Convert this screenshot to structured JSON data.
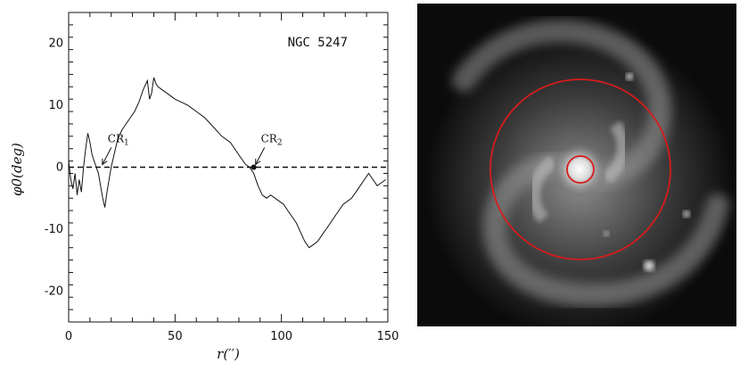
{
  "chart_data": {
    "type": "line",
    "title": "",
    "annotation_title": "NGC 5247",
    "xlabel": "r(′′)",
    "ylabel": "φ0(deg)",
    "xlim": [
      0,
      150
    ],
    "ylim": [
      -25,
      25
    ],
    "xticks": [
      0,
      50,
      100,
      150
    ],
    "yticks": [
      -20,
      -10,
      0,
      10,
      20
    ],
    "zero_line": true,
    "series": [
      {
        "x": [
          0,
          1,
          2,
          3,
          4,
          5,
          6,
          7,
          8,
          9,
          10,
          11,
          12,
          13,
          14,
          15,
          16,
          17,
          18,
          19,
          20,
          21,
          22,
          23,
          25,
          27,
          29,
          31,
          33,
          35,
          37,
          38,
          39,
          40,
          41,
          42,
          44,
          46,
          48,
          50,
          53,
          56,
          60,
          64,
          68,
          72,
          76,
          80,
          83,
          85,
          87,
          89,
          91,
          93,
          95,
          97,
          99,
          101,
          103,
          105,
          107,
          109,
          111,
          113,
          115,
          117,
          119,
          121,
          123,
          125,
          127,
          129,
          131,
          133,
          135,
          137,
          139,
          141,
          143,
          145,
          147,
          149
        ],
        "y": [
          1,
          -2,
          -3.5,
          -1,
          -4.5,
          -2,
          -4,
          0,
          3,
          5.5,
          4,
          2,
          1,
          0,
          -1,
          -3,
          -5,
          -6.5,
          -4,
          -2,
          0,
          1.5,
          3,
          4.5,
          6,
          7,
          8,
          9,
          10.5,
          12.5,
          14,
          11,
          12,
          14.5,
          13.5,
          13,
          12.5,
          12,
          11.5,
          11,
          10.5,
          10,
          9,
          8,
          6.5,
          5,
          4,
          2,
          0.5,
          0,
          -1,
          -3,
          -4.5,
          -5,
          -4.5,
          -5,
          -5.5,
          -6,
          -7,
          -8,
          -9,
          -10.5,
          -12,
          -13,
          -12.5,
          -12,
          -11,
          -10,
          -9,
          -8,
          -7,
          -6,
          -5.5,
          -5,
          -4,
          -3,
          -2,
          -1,
          -2,
          -3,
          -2.5,
          -2
        ]
      }
    ],
    "annotations": [
      {
        "label": "CR",
        "sub": "1",
        "x": 15,
        "y": 0
      },
      {
        "label": "CR",
        "sub": "2",
        "x": 87,
        "y": 0
      }
    ]
  }
}
